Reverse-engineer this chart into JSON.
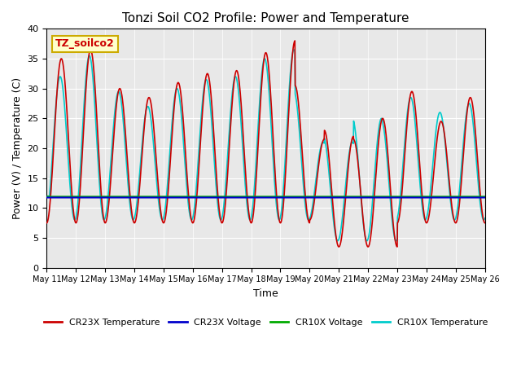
{
  "title": "Tonzi Soil CO2 Profile: Power and Temperature",
  "xlabel": "Time",
  "ylabel": "Power (V) / Temperature (C)",
  "ylim": [
    0,
    40
  ],
  "xlim_days": [
    0,
    15
  ],
  "annotation": "TZ_soilco2",
  "cr23x_voltage_value": 11.75,
  "cr10x_voltage_value": 11.9,
  "background_color": "#e8e8e8",
  "legend_items": [
    "CR23X Temperature",
    "CR23X Voltage",
    "CR10X Voltage",
    "CR10X Temperature"
  ],
  "legend_colors": [
    "#cc0000",
    "#0000cc",
    "#00aa00",
    "#00cccc"
  ],
  "tick_labels": [
    "May 11",
    "May 12",
    "May 13",
    "May 14",
    "May 15",
    "May 16",
    "May 17",
    "May 18",
    "May 19",
    "May 20",
    "May 21",
    "May 22",
    "May 23",
    "May 24",
    "May 25",
    "May 26"
  ]
}
